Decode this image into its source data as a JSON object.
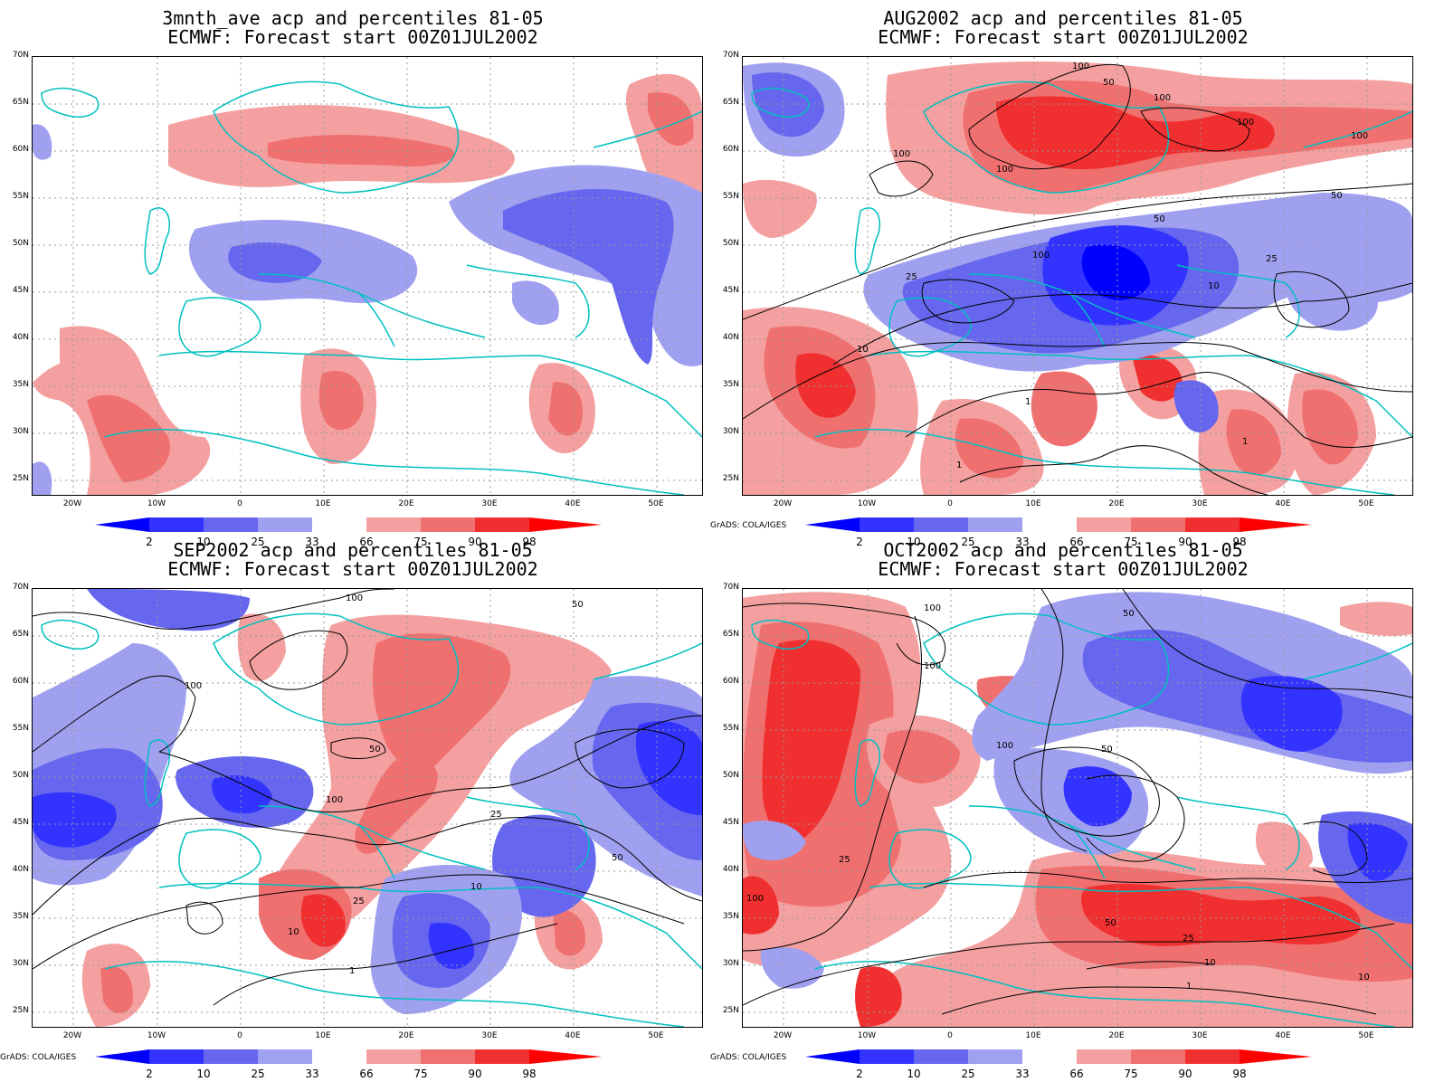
{
  "panels": [
    {
      "title_line1": "3mnth_ave acp and percentiles 81-05",
      "title_line2": "ECMWF: Forecast start 00Z01JUL2002",
      "credit": ""
    },
    {
      "title_line1": "AUG2002 acp and percentiles 81-05",
      "title_line2": "ECMWF: Forecast start 00Z01JUL2002",
      "credit": "GrADS: COLA/IGES"
    },
    {
      "title_line1": "SEP2002 acp and percentiles 81-05",
      "title_line2": "ECMWF: Forecast start 00Z01JUL2002",
      "credit": "GrADS: COLA/IGES"
    },
    {
      "title_line1": "OCT2002 acp and percentiles 81-05",
      "title_line2": "ECMWF: Forecast start 00Z01JUL2002",
      "credit": "GrADS: COLA/IGES"
    }
  ],
  "lat_labels": [
    "70N",
    "65N",
    "60N",
    "55N",
    "50N",
    "45N",
    "40N",
    "35N",
    "30N",
    "25N"
  ],
  "lon_labels": [
    "20W",
    "10W",
    "0",
    "10E",
    "20E",
    "30E",
    "40E",
    "50E"
  ],
  "colorbar": {
    "labels": [
      "2",
      "10",
      "25",
      "33",
      "66",
      "75",
      "90",
      "98"
    ],
    "colors": [
      "#0000ff",
      "#3333ff",
      "#6666ee",
      "#a0a0f0",
      "#ffffff",
      "#f4a0a0",
      "#f07070",
      "#f03030",
      "#ff0000"
    ]
  },
  "colors": {
    "coast": "#00c0c0",
    "contour": "#000000",
    "grid": "#999999"
  },
  "contour_labels": {
    "p1": [],
    "p2": [
      "100",
      "100",
      "100",
      "100",
      "100",
      "100",
      "100",
      "50",
      "50",
      "50",
      "25",
      "25",
      "10",
      "10",
      "1",
      "1",
      "1"
    ],
    "p3": [
      "100",
      "100",
      "100",
      "50",
      "50",
      "50",
      "25",
      "25",
      "10",
      "10",
      "1"
    ],
    "p4": [
      "100",
      "100",
      "100",
      "100",
      "50",
      "50",
      "50",
      "25",
      "25",
      "10",
      "10",
      "1"
    ]
  }
}
